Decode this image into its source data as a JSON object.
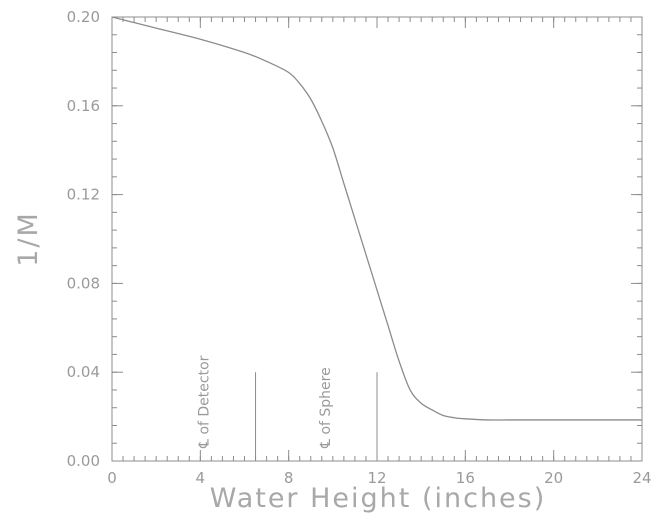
{
  "chart_data": {
    "type": "line",
    "title": "",
    "xlabel": "Water Height (inches)",
    "ylabel": "1/M",
    "xlim": [
      0,
      24
    ],
    "ylim": [
      0,
      0.2
    ],
    "grid": false,
    "legend": "none",
    "x_ticks": [
      0,
      4,
      8,
      12,
      16,
      20,
      24
    ],
    "x_tick_labels": [
      "0",
      "4",
      "8",
      "12",
      "16",
      "20",
      "24"
    ],
    "x_minor_step": 0.5,
    "y_ticks": [
      0,
      0.04,
      0.08,
      0.12,
      0.16,
      0.2
    ],
    "y_tick_labels": [
      "0.00",
      "0.04",
      "0.08",
      "0.12",
      "0.16",
      "0.20"
    ],
    "y_minor_step": 0.008,
    "series": [
      {
        "x": [
          0,
          2,
          4,
          6,
          7,
          8,
          8.5,
          9,
          9.5,
          10,
          10.5,
          11,
          11.5,
          12,
          12.5,
          13,
          13.5,
          14,
          14.5,
          15,
          15.5,
          16,
          17,
          18,
          20,
          22,
          24
        ],
        "y": [
          0.2,
          0.195,
          0.19,
          0.184,
          0.18,
          0.175,
          0.17,
          0.163,
          0.153,
          0.141,
          0.125,
          0.109,
          0.093,
          0.077,
          0.061,
          0.045,
          0.032,
          0.026,
          0.023,
          0.0205,
          0.0195,
          0.019,
          0.0185,
          0.0185,
          0.0185,
          0.0185,
          0.0185
        ]
      }
    ],
    "annotations": [
      {
        "text": "℄ of Detector",
        "x": 6.5,
        "y_top": 0.04
      },
      {
        "text": "℄ of Sphere",
        "x": 12,
        "y_top": 0.04
      }
    ]
  }
}
